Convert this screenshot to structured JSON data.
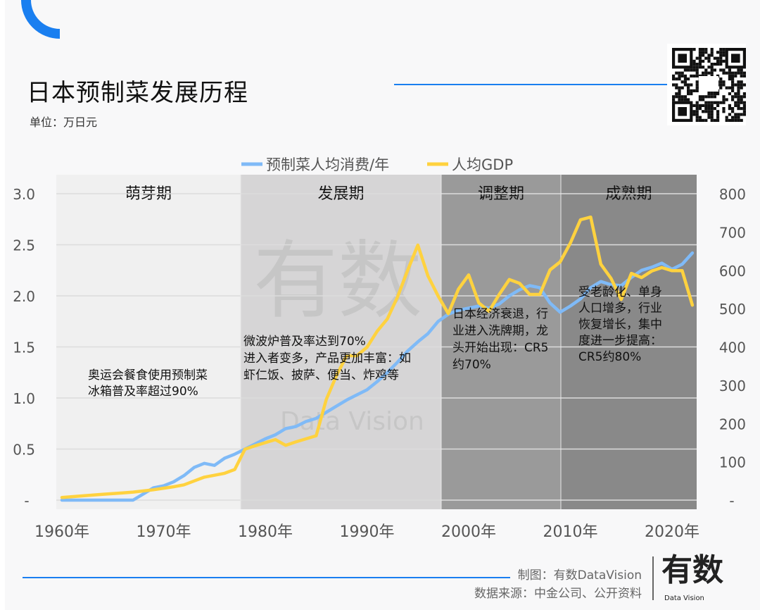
{
  "header": {
    "title": "日本预制菜发展历程",
    "unit": "单位：万日元"
  },
  "footer": {
    "credit": "制图：有数DataVision",
    "source": "数据来源：中金公司、公开资料",
    "logo": "有数",
    "logo_sub": "Data Vision"
  },
  "watermark": {
    "main": "有数",
    "sub": "Data Vision"
  },
  "colors": {
    "accent": "#1a7ff0",
    "blue_series": "#7fbaf7",
    "yellow_series": "#ffd23f"
  },
  "chart_data": {
    "type": "line",
    "title": "日本预制菜发展历程",
    "legend_position": "top",
    "grid": true,
    "x_tick_labels": [
      "1960年",
      "1970年",
      "1980年",
      "1990年",
      "2000年",
      "2010年",
      "2020年"
    ],
    "x_ticks": [
      1960,
      1970,
      1980,
      1990,
      2000,
      2010,
      2020
    ],
    "left_axis": {
      "ylim": [
        0,
        3.0
      ],
      "tick_labels": [
        "-",
        "0.5",
        "1.0",
        "1.5",
        "2.0",
        "2.5",
        "3.0"
      ]
    },
    "right_axis": {
      "ylim": [
        0,
        800
      ],
      "tick_labels": [
        "-",
        "100",
        "200",
        "300",
        "400",
        "500",
        "600",
        "700",
        "800"
      ]
    },
    "x": [
      1960,
      1961,
      1962,
      1963,
      1964,
      1965,
      1966,
      1967,
      1968,
      1969,
      1970,
      1971,
      1972,
      1973,
      1974,
      1975,
      1976,
      1977,
      1978,
      1979,
      1980,
      1981,
      1982,
      1983,
      1984,
      1985,
      1986,
      1987,
      1988,
      1989,
      1990,
      1991,
      1992,
      1993,
      1994,
      1995,
      1996,
      1997,
      1998,
      1999,
      2000,
      2001,
      2002,
      2003,
      2004,
      2005,
      2006,
      2007,
      2008,
      2009,
      2010,
      2011,
      2012,
      2013,
      2014,
      2015,
      2016,
      2017,
      2018,
      2019,
      2020,
      2021,
      2022
    ],
    "series": [
      {
        "name": "预制菜人均消费/年",
        "axis": "left",
        "color": "#7fbaf7",
        "values": [
          0,
          0,
          0,
          0,
          0,
          0,
          0,
          0,
          0.06,
          0.12,
          0.14,
          0.18,
          0.24,
          0.32,
          0.36,
          0.34,
          0.41,
          0.45,
          0.5,
          0.55,
          0.6,
          0.64,
          0.7,
          0.72,
          0.77,
          0.8,
          0.86,
          0.92,
          0.98,
          1.03,
          1.08,
          1.16,
          1.25,
          1.35,
          1.46,
          1.55,
          1.63,
          1.75,
          1.82,
          1.86,
          1.88,
          1.9,
          1.88,
          1.92,
          2.0,
          2.06,
          2.1,
          2.08,
          1.93,
          1.84,
          1.9,
          1.97,
          2.08,
          2.14,
          2.11,
          2.1,
          2.18,
          2.25,
          2.28,
          2.32,
          2.26,
          2.31,
          2.42
        ]
      },
      {
        "name": "人均GDP",
        "axis": "right",
        "color": "#ffd23f",
        "values": [
          7,
          9,
          11,
          13,
          15,
          17,
          19,
          21,
          24,
          27,
          31,
          35,
          40,
          50,
          60,
          65,
          70,
          80,
          133,
          142,
          150,
          158,
          143,
          152,
          160,
          168,
          263,
          325,
          377,
          377,
          399,
          441,
          473,
          530,
          600,
          666,
          585,
          533,
          487,
          551,
          588,
          515,
          493,
          537,
          576,
          566,
          537,
          537,
          601,
          622,
          671,
          732,
          739,
          616,
          579,
          524,
          592,
          581,
          598,
          607,
          599,
          599,
          509
        ]
      }
    ],
    "periods": [
      {
        "label": "萌芽期",
        "from": 1960,
        "to": 1978,
        "color": "#f0f0f0"
      },
      {
        "label": "发展期",
        "from": 1978,
        "to": 1998,
        "color": "#d6d5d6"
      },
      {
        "label": "调整期",
        "from": 1998,
        "to": 2010,
        "color": "#9a9a9a"
      },
      {
        "label": "成熟期",
        "from": 2010,
        "to": 2022,
        "color": "#898989"
      }
    ],
    "annotations": [
      {
        "lines": [
          "奥运会餐食使用预制菜",
          "冰箱普及率超过90%"
        ]
      },
      {
        "lines": [
          "微波炉普及率达到70%",
          "进入者变多，产品更加丰富：如",
          "虾仁饭、披萨、便当、炸鸡等"
        ]
      },
      {
        "lines": [
          "日本经济衰退，行",
          "业进入洗牌期，龙",
          "头开始出现：CR5",
          "约70%"
        ]
      },
      {
        "lines": [
          "受老龄化、单身",
          "人口增多，行业",
          "恢复增长，集中",
          "度进一步提高：",
          "CR5约80%"
        ]
      }
    ]
  }
}
